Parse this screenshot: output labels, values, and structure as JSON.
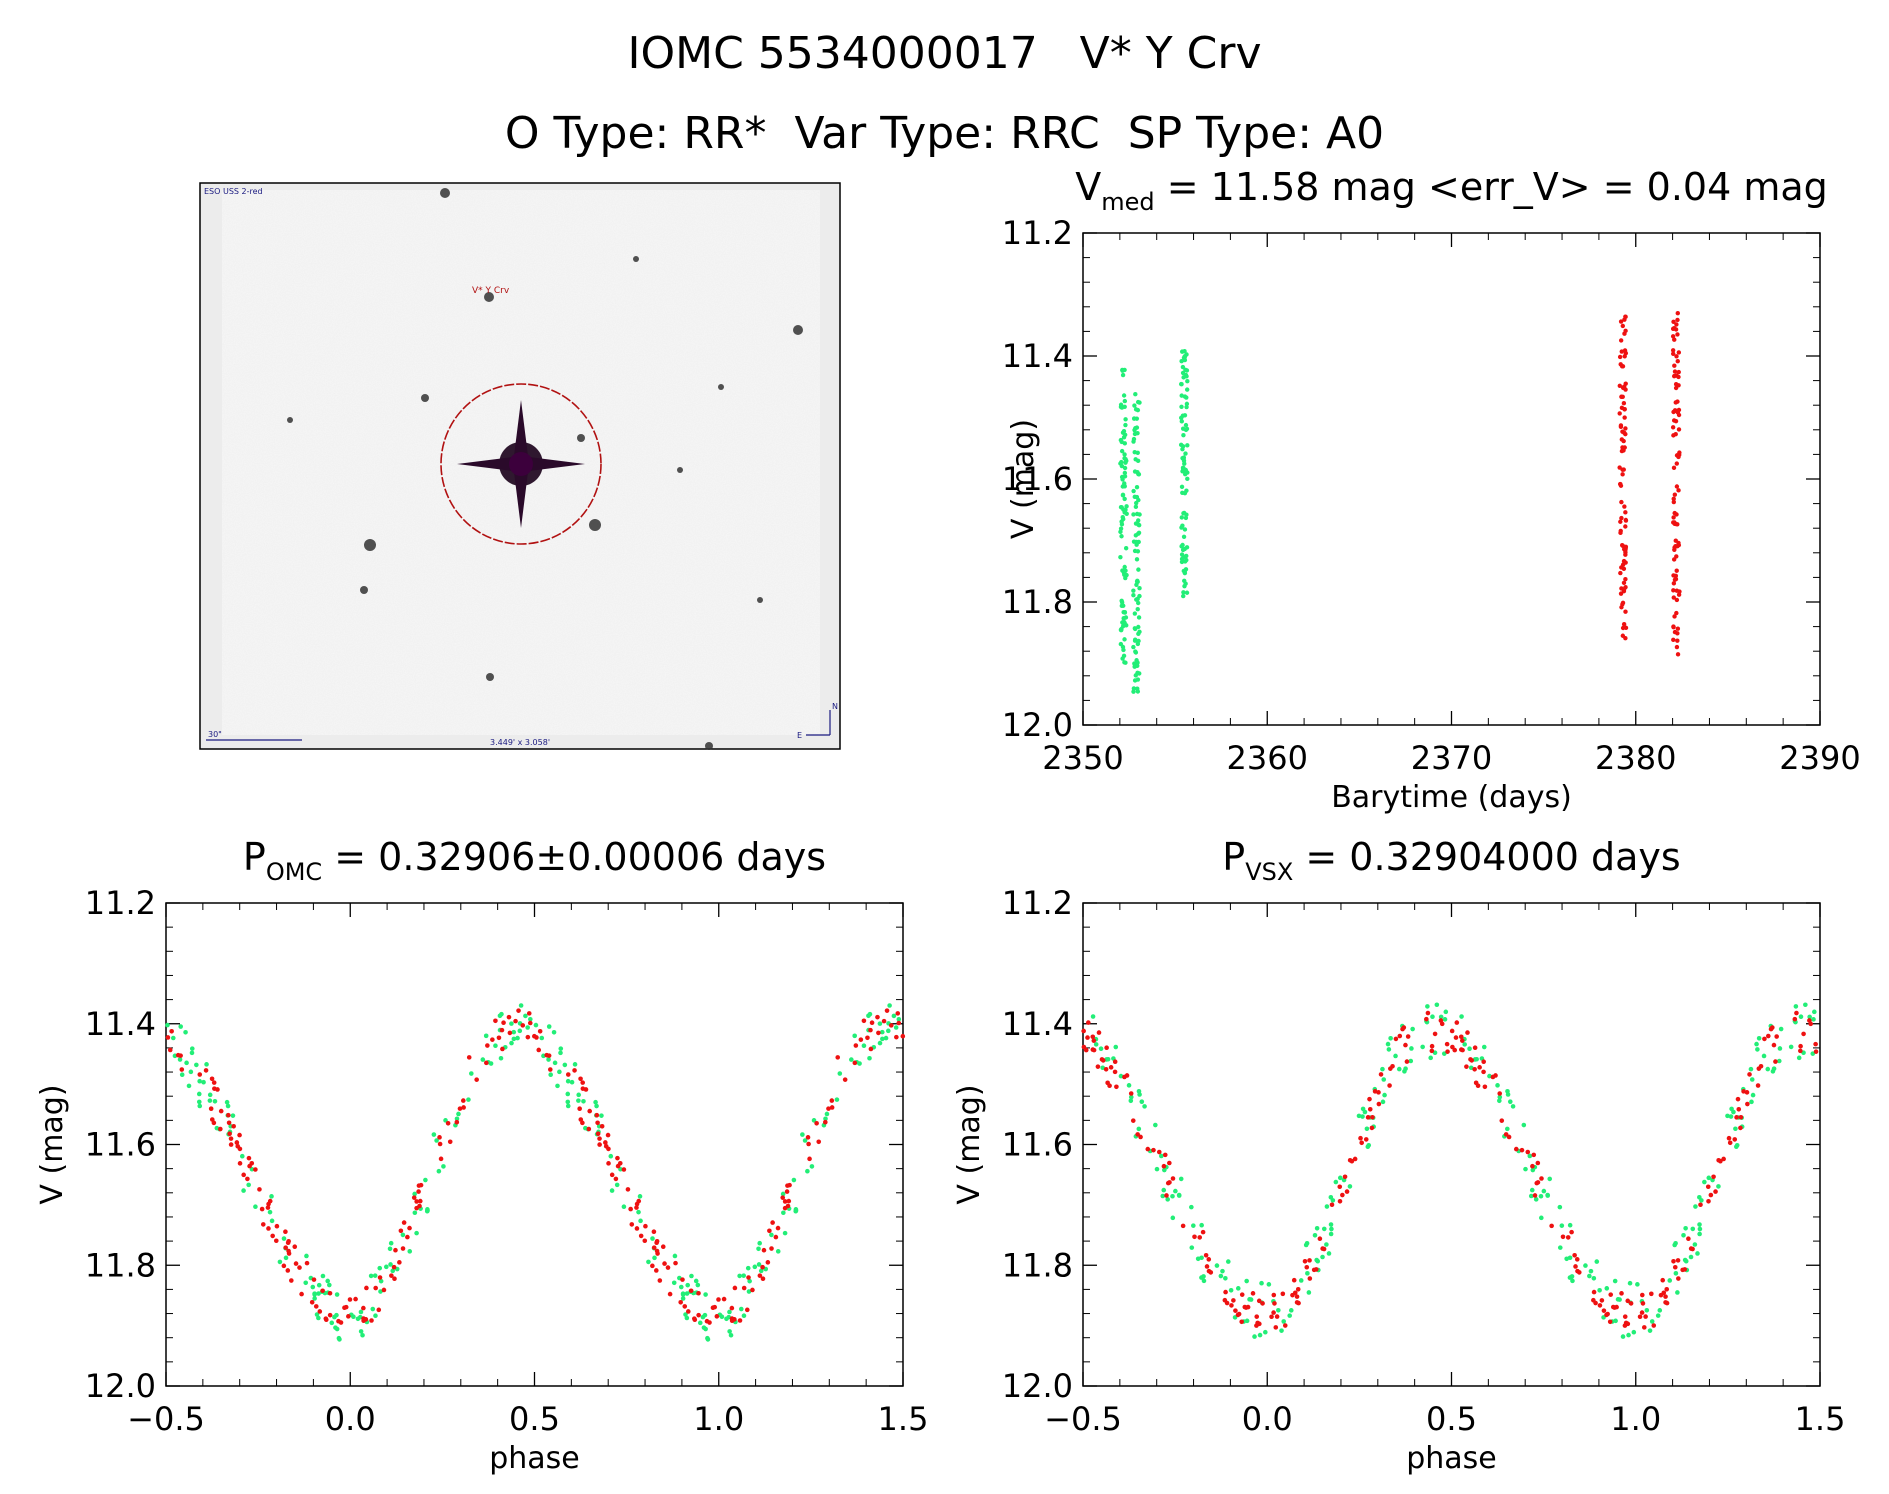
{
  "header": {
    "title_line1": "IOMC 5534000017   V* Y Crv",
    "title_line2": "O Type: RR*  Var Type: RRC  SP Type: A0"
  },
  "finder": {
    "survey_label": "ESO USS 2-red",
    "target_label": "V* Y Crv",
    "scale_label": "30\"",
    "fov_label": "3.449' x 3.058'",
    "north_label": "N",
    "east_label": "E"
  },
  "colors": {
    "green": "#22ee77",
    "red": "#ee1111",
    "circle": "#b11111"
  },
  "chart_data": [
    {
      "id": "lightcurve",
      "type": "scatter",
      "title_main": "V",
      "title_sub": "med",
      "title_rest": " = 11.58 mag <err_V> = 0.04 mag",
      "xlabel": "Barytime (days)",
      "ylabel": "V (mag)",
      "xlim": [
        2350,
        2390
      ],
      "ylim": [
        12.0,
        11.2
      ],
      "xticks": [
        "2350",
        "2360",
        "2370",
        "2380",
        "2390"
      ],
      "yticks": [
        "11.2",
        "11.4",
        "11.6",
        "11.8",
        "12.0"
      ],
      "series": [
        {
          "name": "camera-green",
          "color": "#22ee77",
          "x_min": 2352.0,
          "x_max": 2355.7,
          "clusters": [
            {
              "x": 2352.2,
              "y_from": 11.42,
              "y_to": 11.9
            },
            {
              "x": 2352.9,
              "y_from": 11.46,
              "y_to": 11.95
            },
            {
              "x": 2355.5,
              "y_from": 11.39,
              "y_to": 11.8
            }
          ]
        },
        {
          "name": "camera-red",
          "color": "#ee1111",
          "x_min": 2379.2,
          "x_max": 2382.4,
          "clusters": [
            {
              "x": 2379.3,
              "y_from": 11.33,
              "y_to": 11.86
            },
            {
              "x": 2382.2,
              "y_from": 11.33,
              "y_to": 11.91
            }
          ]
        }
      ]
    },
    {
      "id": "phase-omc",
      "type": "scatter",
      "title_main": "P",
      "title_sub": "OMC",
      "title_rest": " = 0.32906±0.00006 days",
      "xlabel": "phase",
      "ylabel": "V (mag)",
      "xlim": [
        -0.5,
        1.5
      ],
      "ylim": [
        12.0,
        11.2
      ],
      "xticks": [
        "−0.5",
        "0.0",
        "0.5",
        "1.0",
        "1.5"
      ],
      "yticks": [
        "11.2",
        "11.4",
        "11.6",
        "11.8",
        "12.0"
      ],
      "model": {
        "min_phase": 0.0,
        "max_phase": 0.44,
        "faint_mag": 11.88,
        "bright_mag": 11.41
      },
      "series": [
        {
          "name": "camera-green",
          "color": "#22ee77"
        },
        {
          "name": "camera-red",
          "color": "#ee1111"
        }
      ]
    },
    {
      "id": "phase-vsx",
      "type": "scatter",
      "title_main": "P",
      "title_sub": "VSX",
      "title_rest": " = 0.32904000 days",
      "xlabel": "phase",
      "ylabel": "V (mag)",
      "xlim": [
        -0.5,
        1.5
      ],
      "ylim": [
        12.0,
        11.2
      ],
      "xticks": [
        "−0.5",
        "0.0",
        "0.5",
        "1.0",
        "1.5"
      ],
      "yticks": [
        "11.2",
        "11.4",
        "11.6",
        "11.8",
        "12.0"
      ],
      "model": {
        "min_phase": 0.0,
        "max_phase": 0.44,
        "faint_mag": 11.88,
        "bright_mag": 11.41
      },
      "series": [
        {
          "name": "camera-green",
          "color": "#22ee77"
        },
        {
          "name": "camera-red",
          "color": "#ee1111"
        }
      ]
    }
  ]
}
